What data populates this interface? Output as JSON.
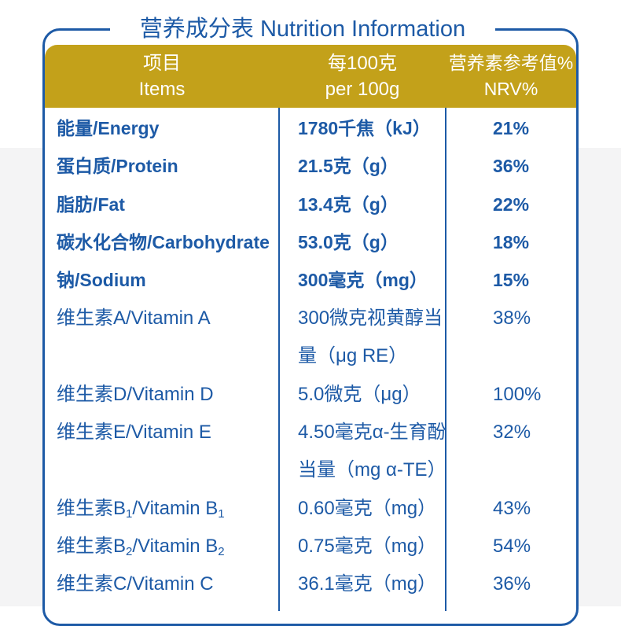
{
  "title": "营养成分表  Nutrition Information",
  "header": {
    "items_cn": "项目",
    "items_en": "Items",
    "per_cn": "每100克",
    "per_en": "per 100g",
    "nrv_cn": "营养素参考值%",
    "nrv_en": "NRV%"
  },
  "rows": [
    {
      "item": "能量/Energy",
      "amount": "1780千焦（kJ）",
      "nrv": "21%"
    },
    {
      "item": "蛋白质/Protein",
      "amount": "21.5克（g）",
      "nrv": "36%"
    },
    {
      "item": "脂肪/Fat",
      "amount": "13.4克（g）",
      "nrv": "22%"
    },
    {
      "item": "碳水化合物/Carbohydrate",
      "amount": "53.0克（g）",
      "nrv": "18%"
    },
    {
      "item": "钠/Sodium",
      "amount": "300毫克（mg）",
      "nrv": "15%"
    },
    {
      "item": "维生素A/Vitamin A",
      "amount": "300微克视黄醇当",
      "amount_line2": "量（μg RE）",
      "nrv": "38%"
    },
    {
      "item": "维生素D/Vitamin D",
      "amount": "5.0微克（μg）",
      "nrv": "100%"
    },
    {
      "item": "维生素E/Vitamin E",
      "amount": "4.50毫克α-生育酚",
      "amount_line2": "当量（mg α-TE）",
      "nrv": "32%"
    },
    {
      "item_prefix": "维生素B",
      "item_sub": "1",
      "item_mid": "/Vitamin B",
      "item_sub2": "1",
      "amount": "0.60毫克（mg）",
      "nrv": "43%"
    },
    {
      "item_prefix": "维生素B",
      "item_sub": "2",
      "item_mid": "/Vitamin B",
      "item_sub2": "2",
      "amount": "0.75毫克（mg）",
      "nrv": "54%"
    },
    {
      "item": "维生素C/Vitamin C",
      "amount": "36.1毫克（mg）",
      "nrv": "36%"
    }
  ]
}
